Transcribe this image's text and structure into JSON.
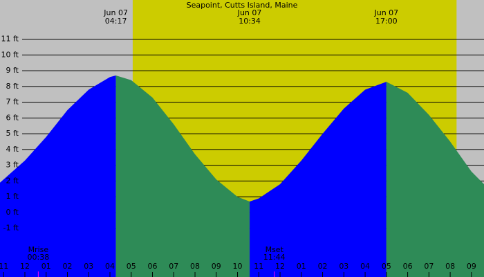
{
  "chart_data": {
    "type": "tide",
    "title": "Seapoint, Cutts Island, Maine",
    "background_color": "#c0c0c0",
    "daylight_color": "#cccc00",
    "daylight": [
      5.07,
      20.3
    ],
    "xlim": [
      -1.17,
      21.59
    ],
    "ylim": [
      -4.09,
      13.49
    ],
    "grid": true,
    "yticks": [
      {
        "value": -1,
        "label": "-1 ft"
      },
      {
        "value": 0,
        "label": "0 ft"
      },
      {
        "value": 1,
        "label": "1 ft"
      },
      {
        "value": 2,
        "label": "2 ft"
      },
      {
        "value": 3,
        "label": "3 ft"
      },
      {
        "value": 4,
        "label": "4 ft"
      },
      {
        "value": 5,
        "label": "5 ft"
      },
      {
        "value": 6,
        "label": "6 ft"
      },
      {
        "value": 7,
        "label": "7 ft"
      },
      {
        "value": 8,
        "label": "8 ft"
      },
      {
        "value": 9,
        "label": "9 ft"
      },
      {
        "value": 10,
        "label": "10 ft"
      },
      {
        "value": 11,
        "label": "11 ft"
      }
    ],
    "xticks": [
      {
        "value": -1,
        "label": "11"
      },
      {
        "value": 0,
        "label": "12"
      },
      {
        "value": 1,
        "label": "01"
      },
      {
        "value": 2,
        "label": "02"
      },
      {
        "value": 3,
        "label": "03"
      },
      {
        "value": 4,
        "label": "04"
      },
      {
        "value": 5,
        "label": "05"
      },
      {
        "value": 6,
        "label": "06"
      },
      {
        "value": 7,
        "label": "07"
      },
      {
        "value": 8,
        "label": "08"
      },
      {
        "value": 9,
        "label": "09"
      },
      {
        "value": 10,
        "label": "10"
      },
      {
        "value": 11,
        "label": "11"
      },
      {
        "value": 12,
        "label": "12"
      },
      {
        "value": 13,
        "label": "01"
      },
      {
        "value": 14,
        "label": "02"
      },
      {
        "value": 15,
        "label": "03"
      },
      {
        "value": 16,
        "label": "04"
      },
      {
        "value": 17,
        "label": "05"
      },
      {
        "value": 18,
        "label": "06"
      },
      {
        "value": 19,
        "label": "07"
      },
      {
        "value": 20,
        "label": "08"
      },
      {
        "value": 21,
        "label": "09"
      }
    ],
    "areas": [
      {
        "color": "#0000ff",
        "x": [
          -1.17,
          0,
          1,
          2,
          3,
          4,
          4.28
        ],
        "values": [
          1.9,
          3.3,
          4.8,
          6.5,
          7.8,
          8.6,
          8.7
        ]
      },
      {
        "color": "#2e8b57",
        "x": [
          4.28,
          5,
          6,
          7,
          8,
          9,
          10,
          10.57
        ],
        "values": [
          8.7,
          8.4,
          7.3,
          5.6,
          3.7,
          2.1,
          1.0,
          0.7
        ]
      },
      {
        "color": "#0000ff",
        "x": [
          10.57,
          11,
          12,
          13,
          14,
          15,
          16,
          17
        ],
        "values": [
          0.7,
          0.9,
          1.8,
          3.3,
          5.0,
          6.6,
          7.8,
          8.3
        ]
      },
      {
        "color": "#2e8b57",
        "x": [
          17,
          18,
          19,
          20,
          21,
          21.59
        ],
        "values": [
          8.3,
          7.6,
          6.2,
          4.5,
          2.6,
          1.8
        ]
      }
    ],
    "extremes": [
      {
        "x": 4.28,
        "date": "Jun 07",
        "time": "04:17"
      },
      {
        "x": 10.57,
        "date": "Jun 07",
        "time": "10:34"
      },
      {
        "x": 17,
        "date": "Jun 07",
        "time": "17:00"
      }
    ],
    "moon": [
      {
        "x": 0.63,
        "label": "Mrise",
        "time": "00:38"
      },
      {
        "x": 11.73,
        "label": "Mset",
        "time": "11:44"
      }
    ]
  }
}
